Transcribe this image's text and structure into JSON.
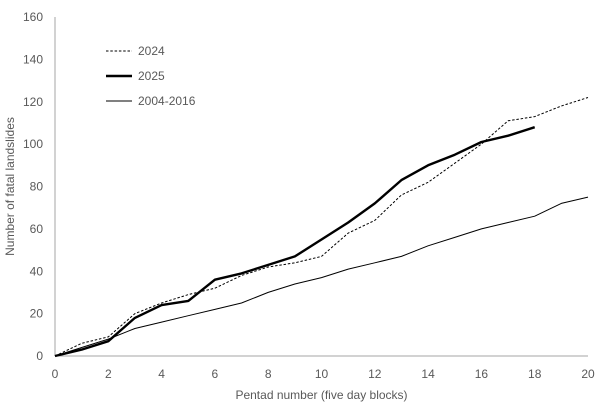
{
  "chart_data": {
    "type": "line",
    "title": "",
    "xlabel": "Pentad number (five day blocks)",
    "ylabel": "Number of fatal landslides",
    "xlim": [
      0,
      20
    ],
    "ylim": [
      0,
      160
    ],
    "xticks": [
      0,
      2,
      4,
      6,
      8,
      10,
      12,
      14,
      16,
      18,
      20
    ],
    "yticks": [
      0,
      20,
      40,
      60,
      80,
      100,
      120,
      140,
      160
    ],
    "grid": false,
    "legend_position": "top-left",
    "series": [
      {
        "name": "2024",
        "style": "dotted",
        "color": "#000000",
        "x": [
          0,
          1,
          2,
          3,
          4,
          5,
          6,
          7,
          8,
          9,
          10,
          11,
          12,
          13,
          14,
          15,
          16,
          17,
          18,
          19,
          20
        ],
        "y": [
          0,
          6,
          9,
          20,
          25,
          29,
          32,
          38,
          42,
          44,
          47,
          58,
          64,
          76,
          82,
          91,
          100,
          111,
          113,
          118,
          122
        ]
      },
      {
        "name": "2025",
        "style": "thick",
        "color": "#000000",
        "x": [
          0,
          1,
          2,
          3,
          4,
          5,
          6,
          7,
          8,
          9,
          10,
          11,
          12,
          13,
          14,
          15,
          16,
          17,
          18
        ],
        "y": [
          0,
          3,
          7,
          18,
          24,
          26,
          36,
          39,
          43,
          47,
          55,
          63,
          72,
          83,
          90,
          95,
          101,
          104,
          108
        ]
      },
      {
        "name": "2004-2016",
        "style": "thin",
        "color": "#000000",
        "x": [
          0,
          1,
          2,
          3,
          4,
          5,
          6,
          7,
          8,
          9,
          10,
          11,
          12,
          13,
          14,
          15,
          16,
          17,
          18,
          19,
          20
        ],
        "y": [
          0,
          4,
          8,
          13,
          16,
          19,
          22,
          25,
          30,
          34,
          37,
          41,
          44,
          47,
          52,
          56,
          60,
          63,
          66,
          72,
          75
        ]
      }
    ]
  }
}
